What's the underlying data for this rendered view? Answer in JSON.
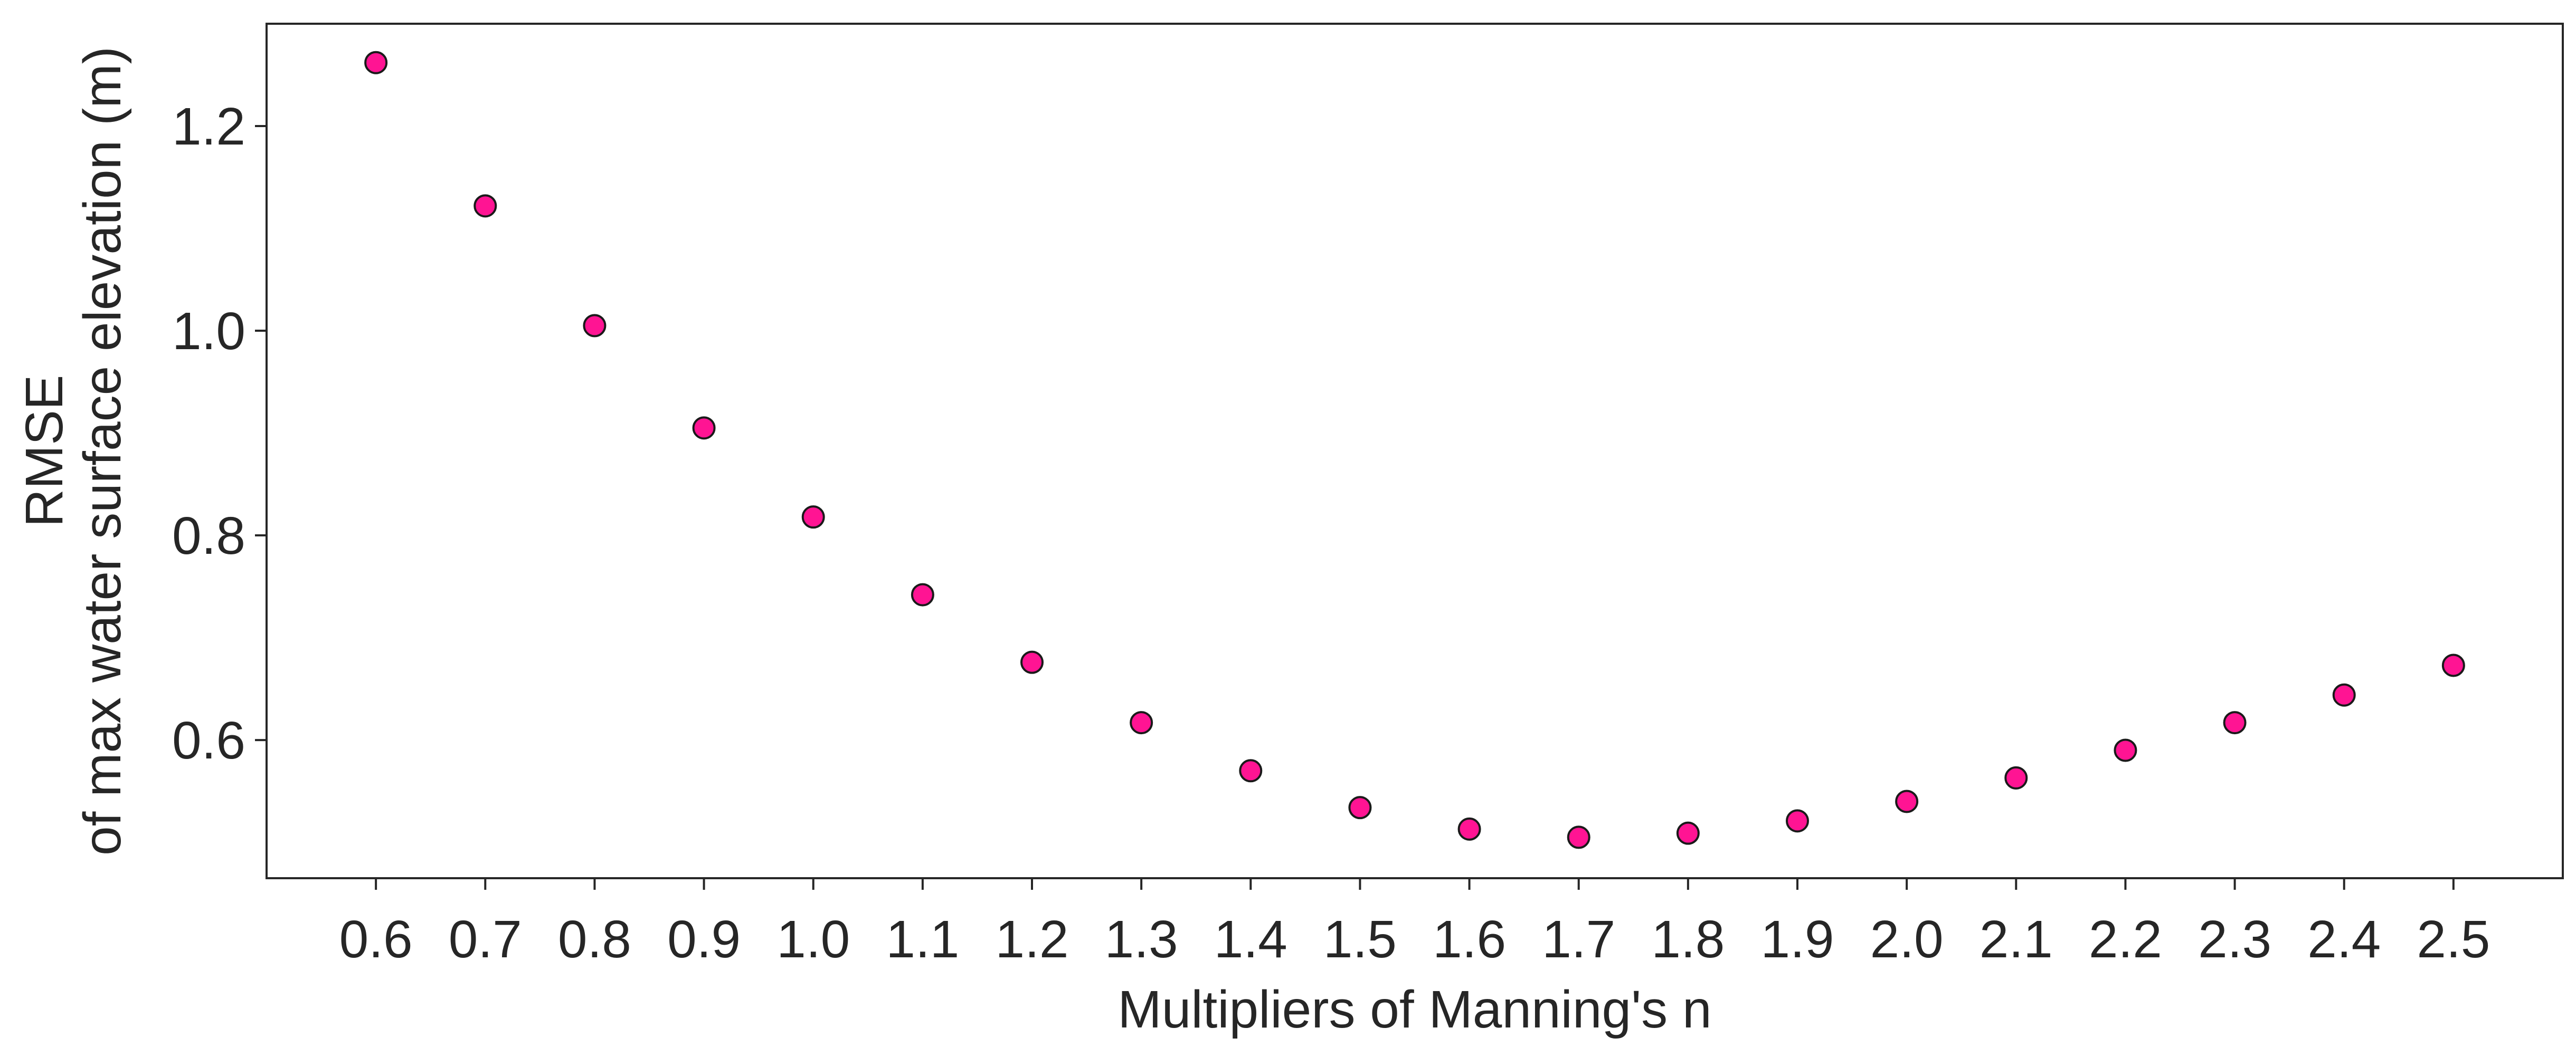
{
  "chart_data": {
    "type": "scatter",
    "title": "",
    "xlabel": "Multipliers of Manning's n",
    "ylabel_line1": "RMSE",
    "ylabel_line2": "of max water surface elevation (m)",
    "x": [
      0.6,
      0.7,
      0.8,
      0.9,
      1.0,
      1.1,
      1.2,
      1.3,
      1.4,
      1.5,
      1.6,
      1.7,
      1.8,
      1.9,
      2.0,
      2.1,
      2.2,
      2.3,
      2.4,
      2.5
    ],
    "y": [
      1.262,
      1.122,
      1.005,
      0.905,
      0.818,
      0.742,
      0.676,
      0.617,
      0.57,
      0.534,
      0.513,
      0.505,
      0.509,
      0.521,
      0.54,
      0.563,
      0.59,
      0.617,
      0.644,
      0.673
    ],
    "x_tick_labels": [
      "0.6",
      "0.7",
      "0.8",
      "0.9",
      "1.0",
      "1.1",
      "1.2",
      "1.3",
      "1.4",
      "1.5",
      "1.6",
      "1.7",
      "1.8",
      "1.9",
      "2.0",
      "2.1",
      "2.2",
      "2.3",
      "2.4",
      "2.5"
    ],
    "y_ticks": [
      0.6,
      0.8,
      1.0,
      1.2
    ],
    "y_tick_labels": [
      "0.6",
      "0.8",
      "1.0",
      "1.2"
    ],
    "xlim": [
      0.5,
      2.6
    ],
    "ylim": [
      0.465,
      1.3
    ],
    "grid": false,
    "legend": "none",
    "marker_color": "#ff1493",
    "marker_edge_color": "#1a1a1a"
  }
}
